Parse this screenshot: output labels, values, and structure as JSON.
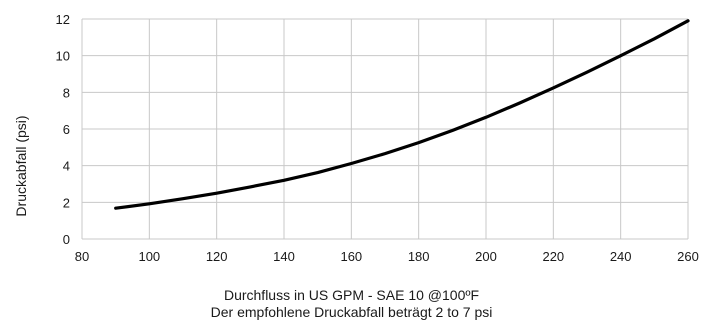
{
  "chart_data": {
    "type": "line",
    "title": "",
    "xlabel": "Durchfluss in US GPM - SAE 10 @100ºF",
    "xlabel_line2": "Der empfohlene Druckabfall beträgt 2 to 7 psi",
    "ylabel": "Druckabfall (psi)",
    "xlim": [
      80,
      260
    ],
    "ylim": [
      0,
      12
    ],
    "xticks": [
      80,
      100,
      120,
      140,
      160,
      180,
      200,
      220,
      240,
      260
    ],
    "yticks": [
      0,
      2,
      4,
      6,
      8,
      10,
      12
    ],
    "grid": true,
    "legend": "none",
    "line_color": "#000000",
    "grid_color": "#c8c8c8",
    "series": [
      {
        "x": [
          90,
          100,
          110,
          120,
          130,
          140,
          150,
          160,
          170,
          180,
          190,
          200,
          210,
          220,
          230,
          240,
          250,
          260
        ],
        "values": [
          1.68,
          1.92,
          2.2,
          2.5,
          2.84,
          3.2,
          3.62,
          4.12,
          4.66,
          5.26,
          5.92,
          6.64,
          7.42,
          8.24,
          9.1,
          10.0,
          10.92,
          11.9
        ]
      }
    ]
  }
}
